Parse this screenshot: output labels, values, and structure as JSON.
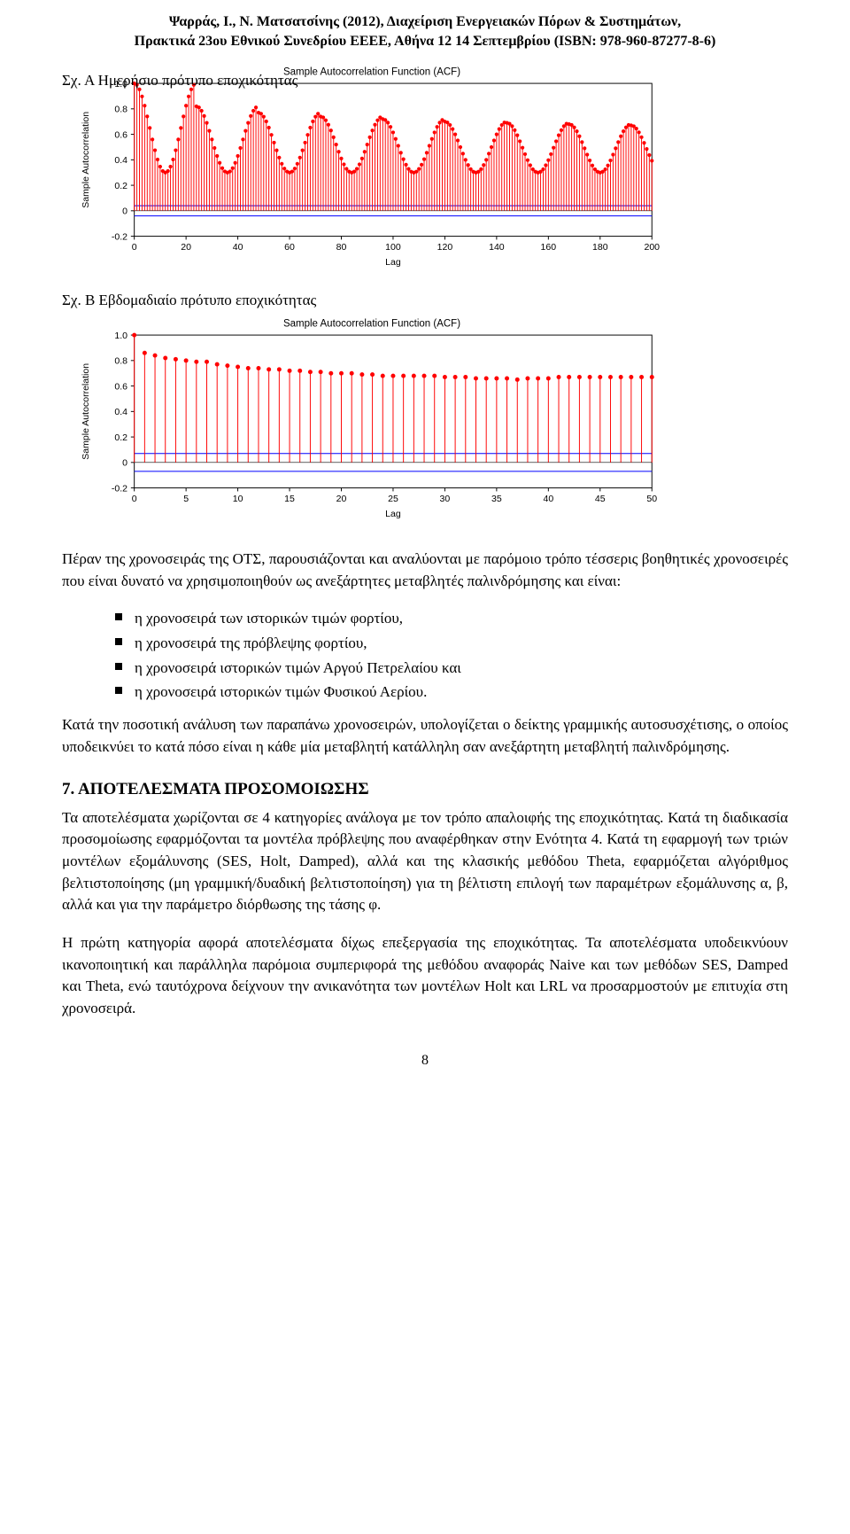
{
  "header": {
    "line1": "Ψαρράς, Ι., Ν. Ματσατσίνης (2012), Διαχείριση Ενεργειακών Πόρων & Συστημάτων,",
    "line2": "Πρακτικά 23ου Εθνικού Συνεδρίου ΕΕΕΕ, Αθήνα 12 14 Σεπτεμβρίου (ISBN: 978-960-87277-8-6)"
  },
  "captions": {
    "figA_trunc": "Σχ. Α   Ημερήσιο πρότυπο εποχικότητας",
    "figB": "Σχ. Β Εβδομαδιαίο πρότυπο εποχικότητας"
  },
  "chartA": {
    "type": "stem",
    "title": "Sample Autocorrelation Function (ACF)",
    "xlabel": "Lag",
    "ylabel": "Sample Autocorrelation",
    "xlim": [
      0,
      200
    ],
    "ylim": [
      -0.2,
      1.0
    ],
    "xtick_step": 20,
    "ytick_step": 0.2,
    "background_color": "#ffffff",
    "axis_color": "#000000",
    "stem_color": "#ff0000",
    "marker_color": "#ff0000",
    "marker_radius": 2.2,
    "bounds_color": "#0000ff",
    "conf_band": 0.04,
    "period": 24,
    "base_decay": [
      1.0,
      0.6,
      0.5,
      0.46,
      0.44,
      0.42,
      0.41,
      0.4,
      0.395
    ],
    "peak_heights": [
      1.0,
      0.82,
      0.77,
      0.74,
      0.72,
      0.7,
      0.69,
      0.68,
      0.67
    ],
    "trough": 0.3
  },
  "chartB": {
    "type": "stem",
    "title": "Sample Autocorrelation Function (ACF)",
    "xlabel": "Lag",
    "ylabel": "Sample Autocorrelation",
    "xlim": [
      0,
      50
    ],
    "ylim": [
      -0.2,
      1.0
    ],
    "xtick_step": 5,
    "ytick_step": 0.2,
    "background_color": "#ffffff",
    "axis_color": "#000000",
    "stem_color": "#ff0000",
    "marker_color": "#ff0000",
    "marker_radius": 2.6,
    "bounds_color": "#0000ff",
    "conf_band": 0.07,
    "values": [
      1.0,
      0.86,
      0.84,
      0.82,
      0.81,
      0.8,
      0.79,
      0.79,
      0.77,
      0.76,
      0.75,
      0.74,
      0.74,
      0.73,
      0.73,
      0.72,
      0.72,
      0.71,
      0.71,
      0.7,
      0.7,
      0.7,
      0.69,
      0.69,
      0.68,
      0.68,
      0.68,
      0.68,
      0.68,
      0.68,
      0.67,
      0.67,
      0.67,
      0.66,
      0.66,
      0.66,
      0.66,
      0.65,
      0.66,
      0.66,
      0.66,
      0.67,
      0.67,
      0.67,
      0.67,
      0.67,
      0.67,
      0.67,
      0.67,
      0.67,
      0.67
    ]
  },
  "body": {
    "p1a": "Πέραν της χρονοσειράς της ΟΤΣ, παρουσιάζονται και αναλύονται με παρόμοιο τρόπο τέσσερις βοηθητικές χρονοσειρές  που είναι δυνατό να χρησιμοποιηθούν ως ανεξάρτητες μεταβλητές παλινδρόμησης και είναι:",
    "li1": "η χρονοσειρά των ιστορικών τιμών φορτίου,",
    "li2": "η χρονοσειρά της πρόβλεψης φορτίου,",
    "li3": "η χρονοσειρά ιστορικών τιμών Αργού Πετρελαίου και",
    "li4": "η χρονοσειρά ιστορικών τιμών Φυσικού Αερίου.",
    "p1b": "Κατά την ποσοτική ανάλυση των παραπάνω χρονοσειρών, υπολογίζεται ο δείκτης γραμμικής αυτοσυσχέτισης, ο οποίος υποδεικνύει το κατά πόσο είναι η κάθε μία μεταβλητή κατάλληλη σαν ανεξάρτητη μεταβλητή παλινδρόμησης.",
    "h2": "7. ΑΠΟΤΕΛΕΣΜΑΤΑ ΠΡΟΣΟΜΟΙΩΣΗΣ",
    "p2": "Τα αποτελέσματα χωρίζονται σε 4 κατηγορίες ανάλογα με τον τρόπο απαλοιφής της εποχικότητας. Κατά τη διαδικασία προσομοίωσης εφαρμόζονται τα μοντέλα πρόβλεψης που αναφέρθηκαν στην Ενότητα 4. Κατά τη εφαρμογή των τριών μοντέλων εξομάλυνσης (SES, Holt, Damped), αλλά και της κλασικής μεθόδου Theta, εφαρμόζεται αλγόριθμος βελτιστοποίησης (μη γραμμική/δυαδική βελτιστοποίηση) για τη βέλτιστη επιλογή των παραμέτρων εξομάλυνσης α, β, αλλά και για την παράμετρο διόρθωσης της τάσης φ.",
    "p3": "Η πρώτη κατηγορία αφορά αποτελέσματα δίχως επεξεργασία της εποχικότητας. Τα αποτελέσματα υποδεικνύουν ικανοποιητική και παράλληλα παρόμοια συμπεριφορά της μεθόδου αναφοράς Naive και των μεθόδων SES, Damped και Theta, ενώ ταυτόχρονα δείχνουν  την ανικανότητα των μοντέλων Holt και LRL να προσαρμοστούν με επιτυχία στη χρονοσειρά."
  },
  "pagenum": "8"
}
